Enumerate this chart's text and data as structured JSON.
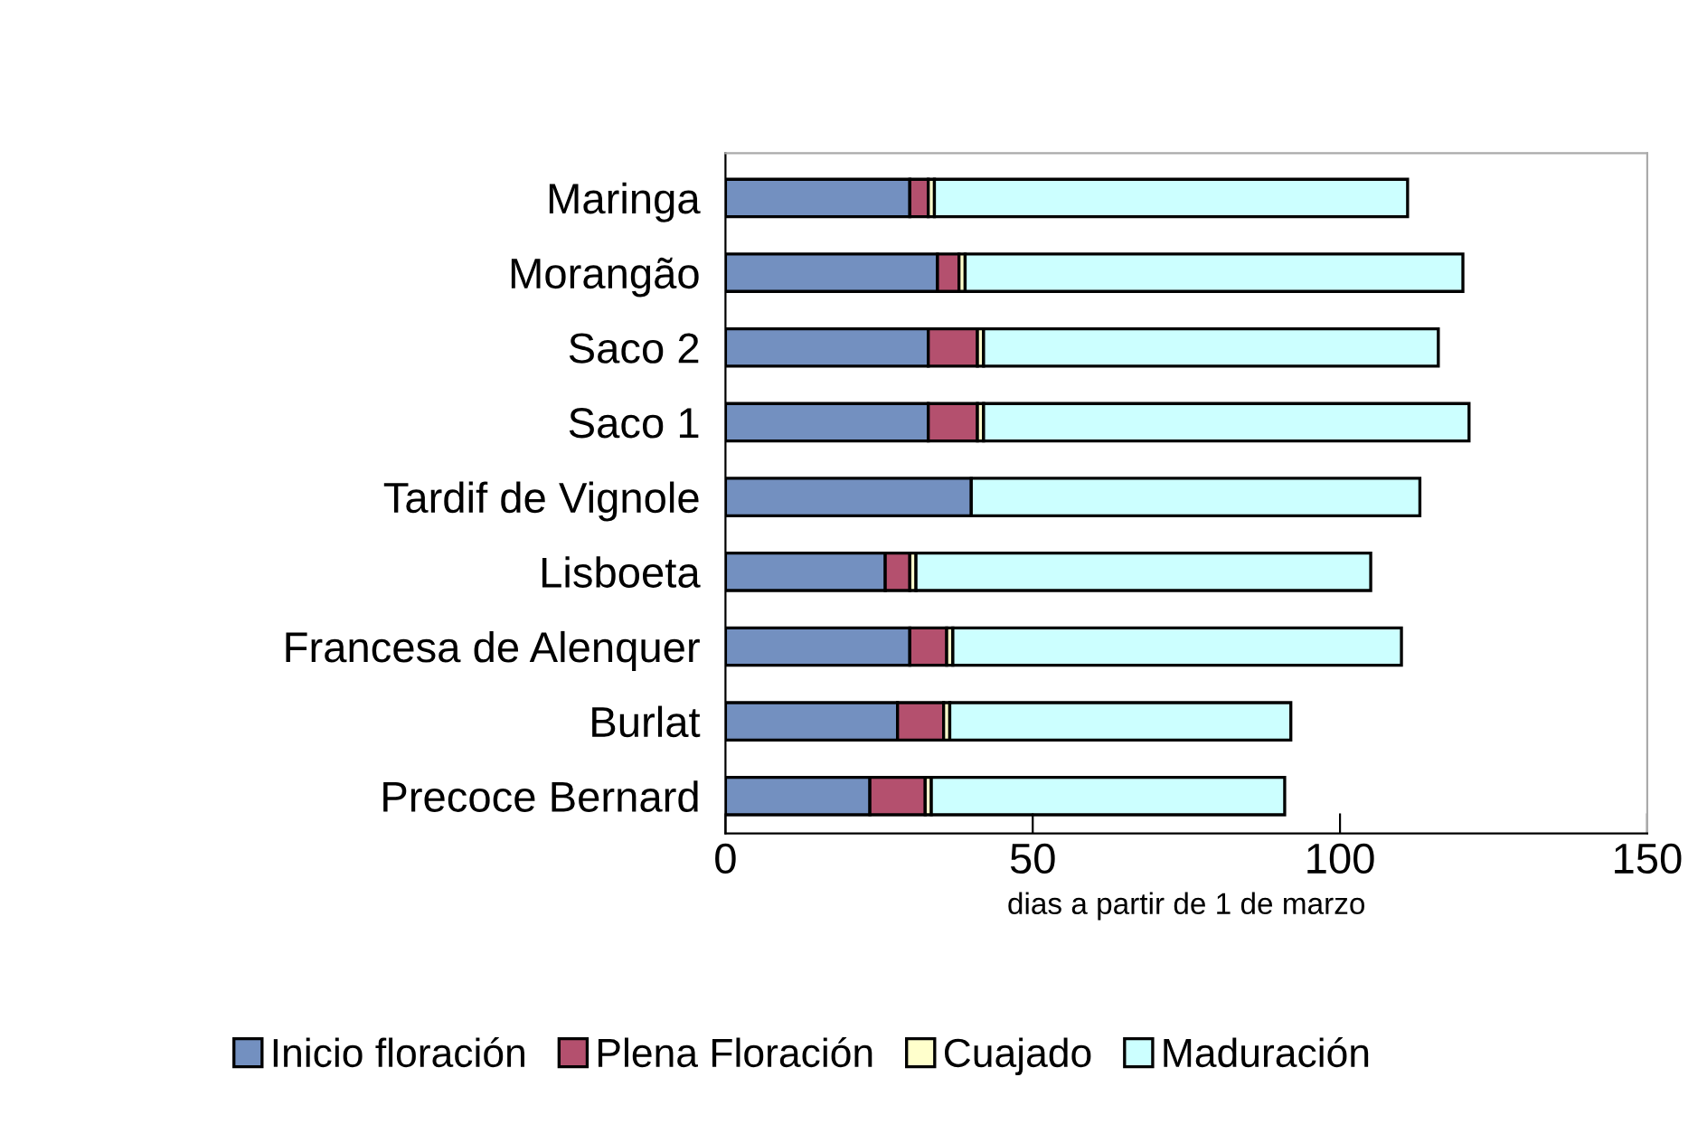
{
  "chart_data": {
    "type": "bar",
    "orientation": "horizontal",
    "stacked": true,
    "categories": [
      "Maringa",
      "Morangão",
      "Saco 2",
      "Saco 1",
      "Tardif de Vignole",
      "Lisboeta",
      "Francesa de Alenquer",
      "Burlat",
      "Precoce Bernard"
    ],
    "series": [
      {
        "name": "Inicio floración",
        "color": "#7390c0",
        "values": [
          30,
          34.5,
          33,
          33,
          40,
          26,
          30,
          28,
          23.5
        ]
      },
      {
        "name": "Plena Floración",
        "color": "#b4506e",
        "values": [
          3,
          3.5,
          8,
          8,
          null,
          4,
          6,
          7.5,
          9
        ]
      },
      {
        "name": "Cuajado",
        "color": "#ffffcc",
        "values": [
          1,
          1,
          1,
          1,
          null,
          1,
          1,
          1,
          1
        ]
      },
      {
        "name": "Maduración",
        "color": "#ccffff",
        "values": [
          77,
          81,
          74,
          79,
          73,
          74,
          73,
          55.5,
          57.5
        ]
      }
    ],
    "xlabel": "dias a partir de 1 de marzo",
    "xlim": [
      0,
      150
    ],
    "xticks": [
      0,
      50,
      100,
      150
    ],
    "grid": false,
    "legend": "bottom"
  }
}
